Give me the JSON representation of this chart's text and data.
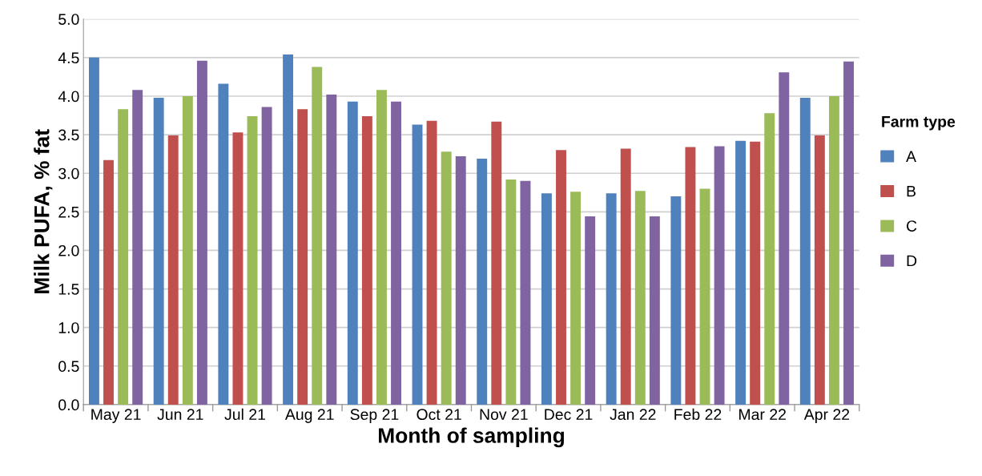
{
  "chart_data": {
    "type": "bar",
    "xlabel": "Month of sampling",
    "ylabel": "Milk PUFA, % fat",
    "legend_title": "Farm type",
    "categories": [
      "May 21",
      "Jun 21",
      "Jul 21",
      "Aug 21",
      "Sep 21",
      "Oct 21",
      "Nov 21",
      "Dec 21",
      "Jan 22",
      "Feb 22",
      "Mar 22",
      "Apr 22"
    ],
    "series": [
      {
        "name": "A",
        "color": "#4f81bd",
        "values": [
          4.5,
          3.98,
          4.16,
          4.54,
          3.93,
          3.63,
          3.19,
          2.74,
          2.74,
          2.7,
          3.42,
          3.98
        ]
      },
      {
        "name": "B",
        "color": "#c0504d",
        "values": [
          3.17,
          3.49,
          3.53,
          3.83,
          3.74,
          3.68,
          3.67,
          3.3,
          3.32,
          3.34,
          3.41,
          3.49
        ]
      },
      {
        "name": "C",
        "color": "#9bbb59",
        "values": [
          3.83,
          4.0,
          3.74,
          4.38,
          4.08,
          3.28,
          2.92,
          2.76,
          2.77,
          2.8,
          3.78,
          4.0
        ]
      },
      {
        "name": "D",
        "color": "#8064a2",
        "values": [
          4.08,
          4.46,
          3.86,
          4.02,
          3.93,
          3.22,
          2.9,
          2.44,
          2.44,
          3.35,
          4.31,
          4.45
        ]
      }
    ],
    "ylim": [
      0,
      5
    ],
    "yticks": [
      {
        "value": 0,
        "label": "0.0"
      },
      {
        "value": 0.5,
        "label": "0.5"
      },
      {
        "value": 1,
        "label": "1.0"
      },
      {
        "value": 1.5,
        "label": "1.5"
      },
      {
        "value": 2,
        "label": "2.0"
      },
      {
        "value": 2.5,
        "label": "2.5"
      },
      {
        "value": 3,
        "label": "3.0"
      },
      {
        "value": 3.5,
        "label": "3.5"
      },
      {
        "value": 4,
        "label": "4.0"
      },
      {
        "value": 4.5,
        "label": "4.5"
      },
      {
        "value": 5,
        "label": "5.0"
      }
    ],
    "grid": "y",
    "legend": "right"
  }
}
